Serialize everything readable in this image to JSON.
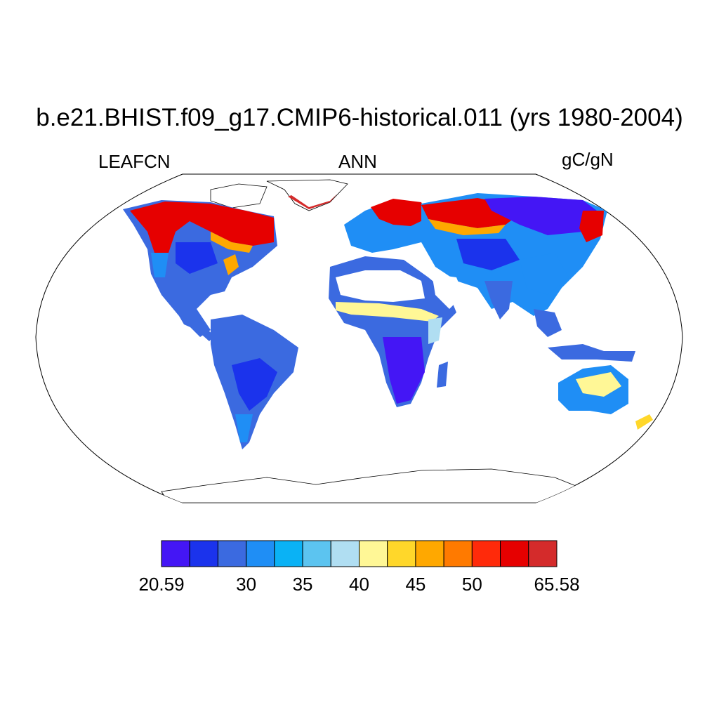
{
  "title": "b.e21.BHIST.f09_g17.CMIP6-historical.011 (yrs 1980-2004)",
  "left_label": "LEAFCN",
  "center_label": "ANN",
  "right_label": "gC/gN",
  "colorbar": {
    "colors": [
      "#4416f5",
      "#1b33ec",
      "#3b6ae0",
      "#1f8ef5",
      "#0ab2f5",
      "#5cc4f0",
      "#b0def2",
      "#fff796",
      "#ffd72a",
      "#ffa800",
      "#ff7a00",
      "#ff2a0a",
      "#e60000",
      "#d42b2b"
    ],
    "labels": [
      "20.59",
      "30",
      "35",
      "40",
      "45",
      "50",
      "65.58"
    ]
  },
  "map": {
    "projection": "Robinson",
    "variable": "LEAFCN",
    "period": "ANN",
    "value_range": [
      20.59,
      65.58
    ],
    "regions": [
      {
        "name": "North America boreal",
        "level": "high (50-65.58)"
      },
      {
        "name": "Siberia / northern Eurasia",
        "level": "high (50-65.58)"
      },
      {
        "name": "Eastern Siberia",
        "level": "low (20.59-30)"
      },
      {
        "name": "Amazon / South America",
        "level": "low (25-35)"
      },
      {
        "name": "Sahel band",
        "level": "mid (40-45)"
      },
      {
        "name": "Central Africa",
        "level": "low (20.59-30)"
      },
      {
        "name": "Australia interior",
        "level": "mid (35-45)"
      },
      {
        "name": "Sahara / Arabia",
        "level": "no data"
      }
    ]
  }
}
